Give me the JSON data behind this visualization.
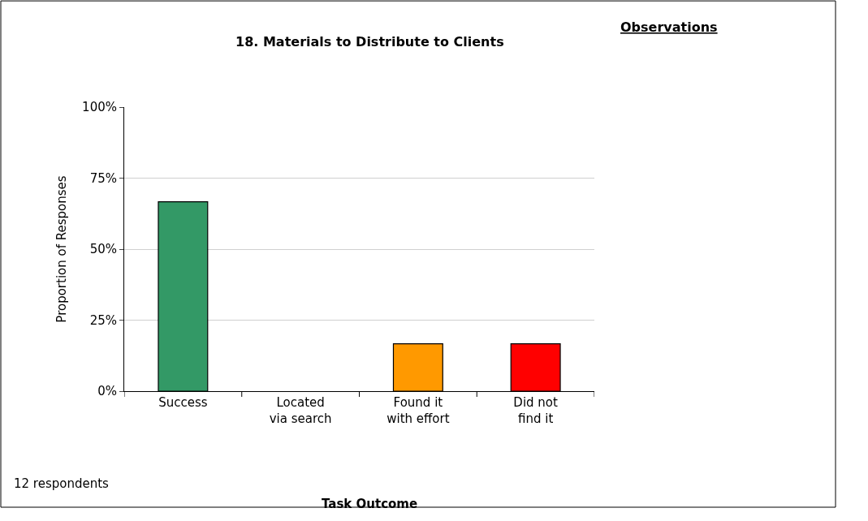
{
  "chart_data": {
    "type": "bar",
    "title": "18. Materials to Distribute to Clients",
    "ylabel": "Proportion of Responses",
    "categories": [
      "Success",
      "Located\nvia search",
      "Found it\nwith effort",
      "Did not\nfind it"
    ],
    "values": [
      66.7,
      0,
      16.7,
      16.7
    ],
    "colors": [
      "#339966",
      "#3366cc",
      "#ff9900",
      "#ff0000"
    ],
    "ylim": [
      0,
      100
    ],
    "yticks": [
      {
        "value": 0,
        "label": "0%"
      },
      {
        "value": 25,
        "label": "25%"
      },
      {
        "value": 50,
        "label": "50%"
      },
      {
        "value": 75,
        "label": "75%"
      },
      {
        "value": 100,
        "label": "100%"
      }
    ],
    "grid": "y",
    "annotations": [
      "Observations",
      "12 respondents",
      "Task Outcome"
    ]
  }
}
